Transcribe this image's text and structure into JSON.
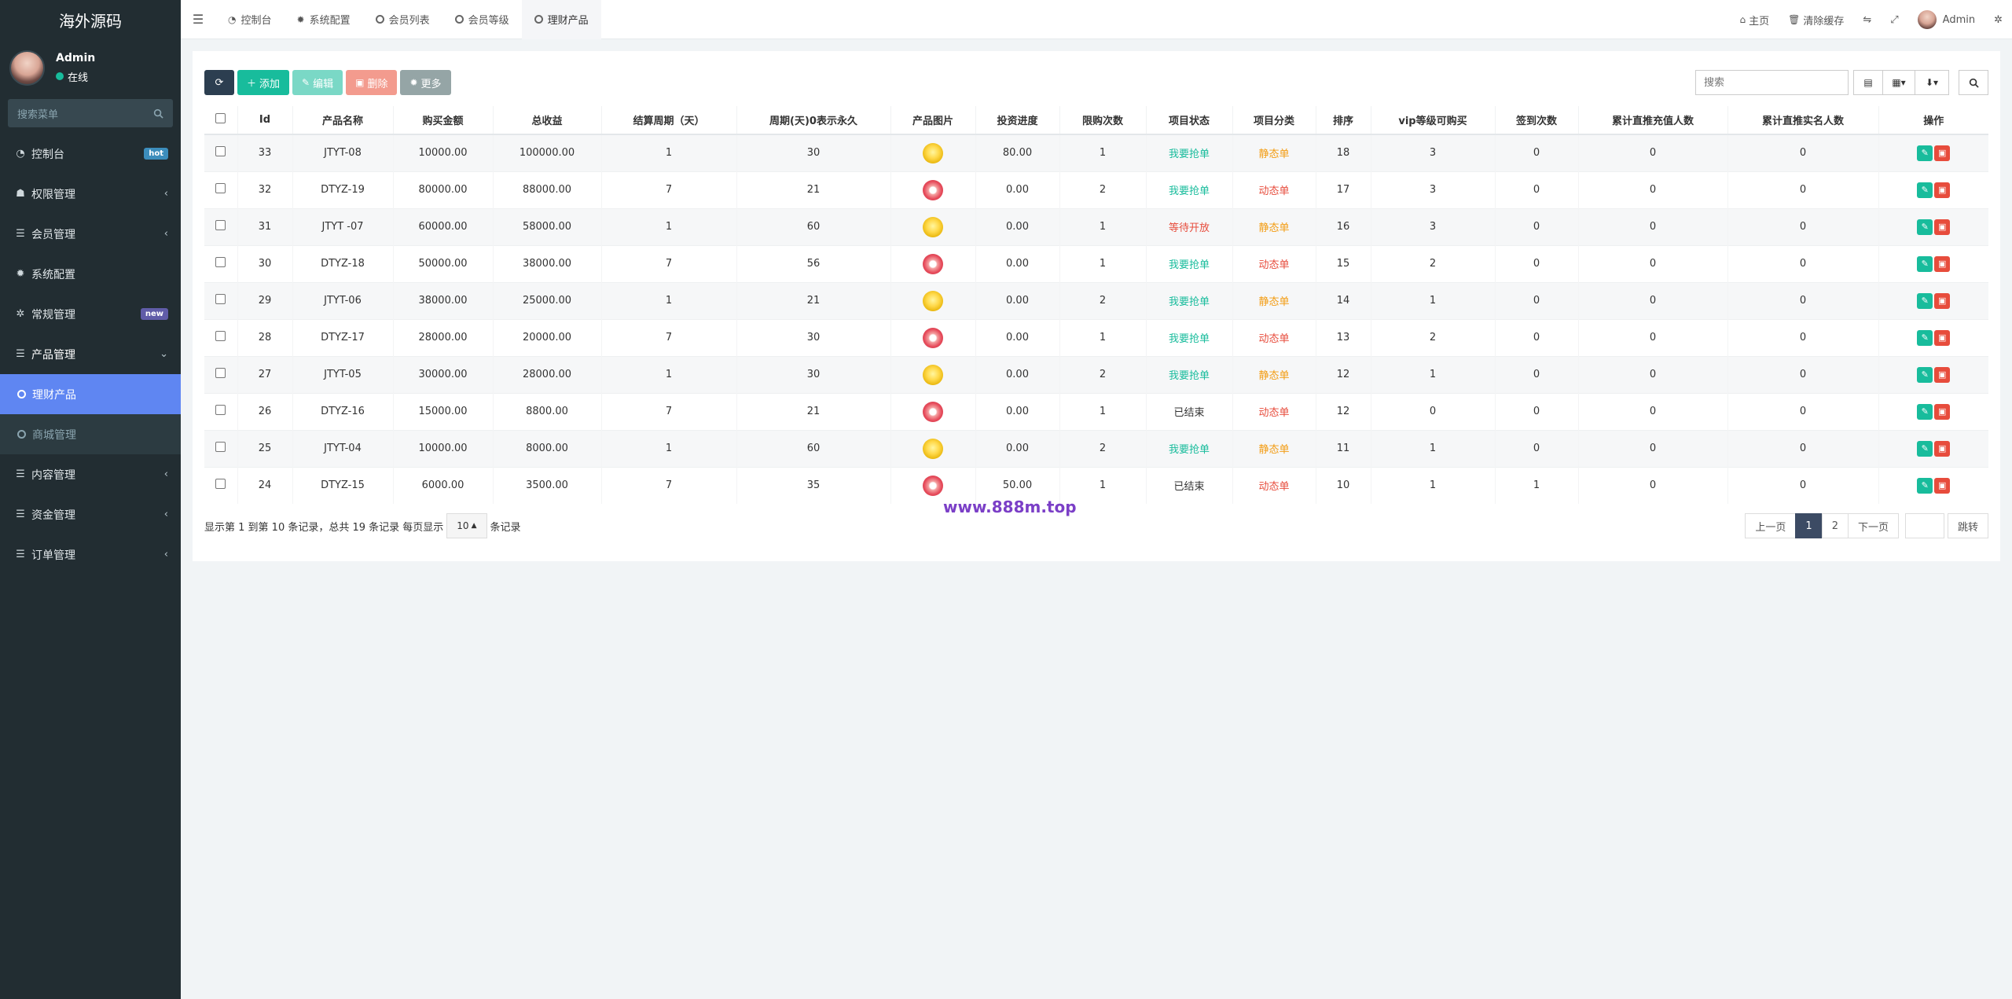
{
  "app": {
    "title": "海外源码"
  },
  "user": {
    "name": "Admin",
    "status": "在线"
  },
  "sidebar": {
    "search_placeholder": "搜索菜单",
    "items": [
      {
        "label": "控制台",
        "icon": "dashboard-icon",
        "badge": "hot"
      },
      {
        "label": "权限管理",
        "icon": "users-group-icon"
      },
      {
        "label": "会员管理",
        "icon": "list-icon"
      },
      {
        "label": "系统配置",
        "icon": "gear-icon"
      },
      {
        "label": "常规管理",
        "icon": "cogs-icon",
        "badge": "new"
      },
      {
        "label": "产品管理",
        "icon": "list-icon",
        "expanded": true
      },
      {
        "label": "理财产品",
        "icon": "circle-icon",
        "active": true,
        "sub": true
      },
      {
        "label": "商城管理",
        "icon": "circle-icon",
        "sub": true
      },
      {
        "label": "内容管理",
        "icon": "list-icon"
      },
      {
        "label": "资金管理",
        "icon": "list-icon"
      },
      {
        "label": "订单管理",
        "icon": "list-icon"
      }
    ]
  },
  "topnav": {
    "tabs": [
      {
        "label": "控制台",
        "icon": "dashboard-icon"
      },
      {
        "label": "系统配置",
        "icon": "gear-icon"
      },
      {
        "label": "会员列表",
        "icon": "circle-icon"
      },
      {
        "label": "会员等级",
        "icon": "circle-icon"
      },
      {
        "label": "理财产品",
        "icon": "circle-icon",
        "active": true
      }
    ],
    "right": {
      "home": "主页",
      "clear_cache": "清除缓存",
      "user": "Admin"
    }
  },
  "toolbar": {
    "add": "添加",
    "edit": "编辑",
    "delete": "删除",
    "more": "更多",
    "search_placeholder": "搜索"
  },
  "table": {
    "columns": [
      "Id",
      "产品名称",
      "购买金额",
      "总收益",
      "结算周期（天）",
      "周期(天)0表示永久",
      "产品图片",
      "投资进度",
      "限购次数",
      "项目状态",
      "项目分类",
      "排序",
      "vip等级可购买",
      "签到次数",
      "累计直推充值人数",
      "累计直推实名人数",
      "操作"
    ],
    "rows": [
      {
        "id": "33",
        "name": "JTYT-08",
        "amount": "10000.00",
        "income": "100000.00",
        "settle": "1",
        "period": "30",
        "img": "gold",
        "progress": "80.00",
        "limit": "1",
        "status": "我要抢单",
        "status_color": "#18bc9c",
        "category": "静态单",
        "cat_color": "#f39c12",
        "sort": "18",
        "vip": "3",
        "signin": "0",
        "recharge": "0",
        "realname": "0"
      },
      {
        "id": "32",
        "name": "DTYZ-19",
        "amount": "80000.00",
        "income": "88000.00",
        "settle": "7",
        "period": "21",
        "img": "red",
        "progress": "0.00",
        "limit": "2",
        "status": "我要抢单",
        "status_color": "#18bc9c",
        "category": "动态单",
        "cat_color": "#e74c3c",
        "sort": "17",
        "vip": "3",
        "signin": "0",
        "recharge": "0",
        "realname": "0"
      },
      {
        "id": "31",
        "name": "JTYT -07",
        "amount": "60000.00",
        "income": "58000.00",
        "settle": "1",
        "period": "60",
        "img": "gold",
        "progress": "0.00",
        "limit": "1",
        "status": "等待开放",
        "status_color": "#e74c3c",
        "category": "静态单",
        "cat_color": "#f39c12",
        "sort": "16",
        "vip": "3",
        "signin": "0",
        "recharge": "0",
        "realname": "0"
      },
      {
        "id": "30",
        "name": "DTYZ-18",
        "amount": "50000.00",
        "income": "38000.00",
        "settle": "7",
        "period": "56",
        "img": "red",
        "progress": "0.00",
        "limit": "1",
        "status": "我要抢单",
        "status_color": "#18bc9c",
        "category": "动态单",
        "cat_color": "#e74c3c",
        "sort": "15",
        "vip": "2",
        "signin": "0",
        "recharge": "0",
        "realname": "0"
      },
      {
        "id": "29",
        "name": "JTYT-06",
        "amount": "38000.00",
        "income": "25000.00",
        "settle": "1",
        "period": "21",
        "img": "gold",
        "progress": "0.00",
        "limit": "2",
        "status": "我要抢单",
        "status_color": "#18bc9c",
        "category": "静态单",
        "cat_color": "#f39c12",
        "sort": "14",
        "vip": "1",
        "signin": "0",
        "recharge": "0",
        "realname": "0"
      },
      {
        "id": "28",
        "name": "DTYZ-17",
        "amount": "28000.00",
        "income": "20000.00",
        "settle": "7",
        "period": "30",
        "img": "red",
        "progress": "0.00",
        "limit": "1",
        "status": "我要抢单",
        "status_color": "#18bc9c",
        "category": "动态单",
        "cat_color": "#e74c3c",
        "sort": "13",
        "vip": "2",
        "signin": "0",
        "recharge": "0",
        "realname": "0"
      },
      {
        "id": "27",
        "name": "JTYT-05",
        "amount": "30000.00",
        "income": "28000.00",
        "settle": "1",
        "period": "30",
        "img": "gold",
        "progress": "0.00",
        "limit": "2",
        "status": "我要抢单",
        "status_color": "#18bc9c",
        "category": "静态单",
        "cat_color": "#f39c12",
        "sort": "12",
        "vip": "1",
        "signin": "0",
        "recharge": "0",
        "realname": "0"
      },
      {
        "id": "26",
        "name": "DTYZ-16",
        "amount": "15000.00",
        "income": "8800.00",
        "settle": "7",
        "period": "21",
        "img": "red",
        "progress": "0.00",
        "limit": "1",
        "status": "已结束",
        "status_color": "#333333",
        "category": "动态单",
        "cat_color": "#e74c3c",
        "sort": "12",
        "vip": "0",
        "signin": "0",
        "recharge": "0",
        "realname": "0"
      },
      {
        "id": "25",
        "name": "JTYT-04",
        "amount": "10000.00",
        "income": "8000.00",
        "settle": "1",
        "period": "60",
        "img": "gold",
        "progress": "0.00",
        "limit": "2",
        "status": "我要抢单",
        "status_color": "#18bc9c",
        "category": "静态单",
        "cat_color": "#f39c12",
        "sort": "11",
        "vip": "1",
        "signin": "0",
        "recharge": "0",
        "realname": "0"
      },
      {
        "id": "24",
        "name": "DTYZ-15",
        "amount": "6000.00",
        "income": "3500.00",
        "settle": "7",
        "period": "35",
        "img": "red",
        "progress": "50.00",
        "limit": "1",
        "status": "已结束",
        "status_color": "#333333",
        "category": "动态单",
        "cat_color": "#e74c3c",
        "sort": "10",
        "vip": "1",
        "signin": "1",
        "recharge": "0",
        "realname": "0"
      }
    ]
  },
  "footer": {
    "summary": "显示第 1 到第 10 条记录，总共 19 条记录 每页显示",
    "page_size": "10",
    "suffix": "条记录",
    "watermark": "www.888m.top"
  },
  "pagination": {
    "prev": "上一页",
    "pages": [
      "1",
      "2"
    ],
    "current": "1",
    "next": "下一页",
    "jump": "跳转"
  }
}
